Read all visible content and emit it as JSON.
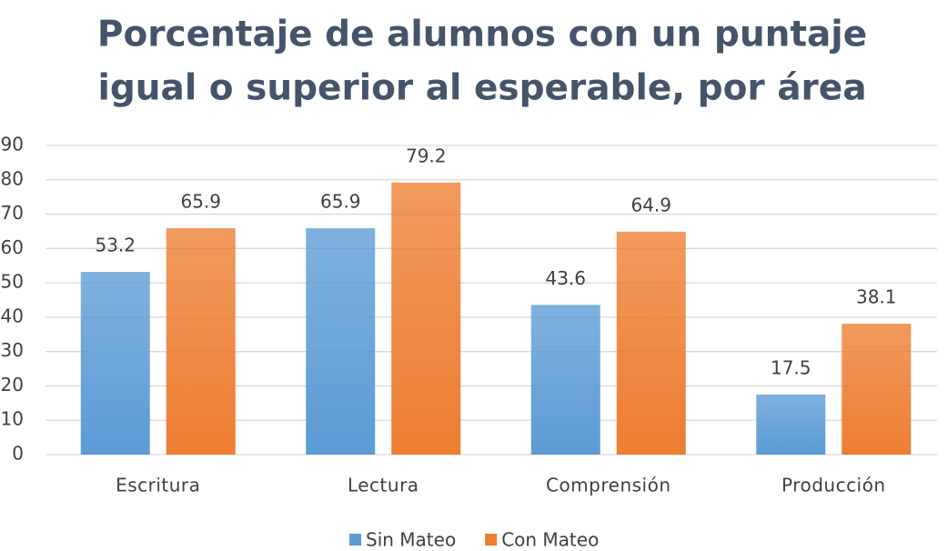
{
  "chart_data": {
    "type": "bar",
    "title": [
      "Porcentaje de alumnos con un puntaje",
      "igual o superior al esperable, por área"
    ],
    "categories": [
      "Escritura",
      "Lectura",
      "Comprensión",
      "Producción"
    ],
    "series": [
      {
        "name": "Sin Mateo",
        "color": "#5b9bd5",
        "values": [
          53.2,
          65.9,
          43.6,
          17.5
        ]
      },
      {
        "name": "Con Mateo",
        "color": "#ed7d31",
        "values": [
          65.9,
          79.2,
          64.9,
          38.1
        ]
      }
    ],
    "ylim": [
      0,
      90
    ],
    "yticks": [
      0,
      10,
      20,
      30,
      40,
      50,
      60,
      70,
      80,
      90
    ],
    "grid": true,
    "legend": "bottom",
    "data_labels": true
  }
}
